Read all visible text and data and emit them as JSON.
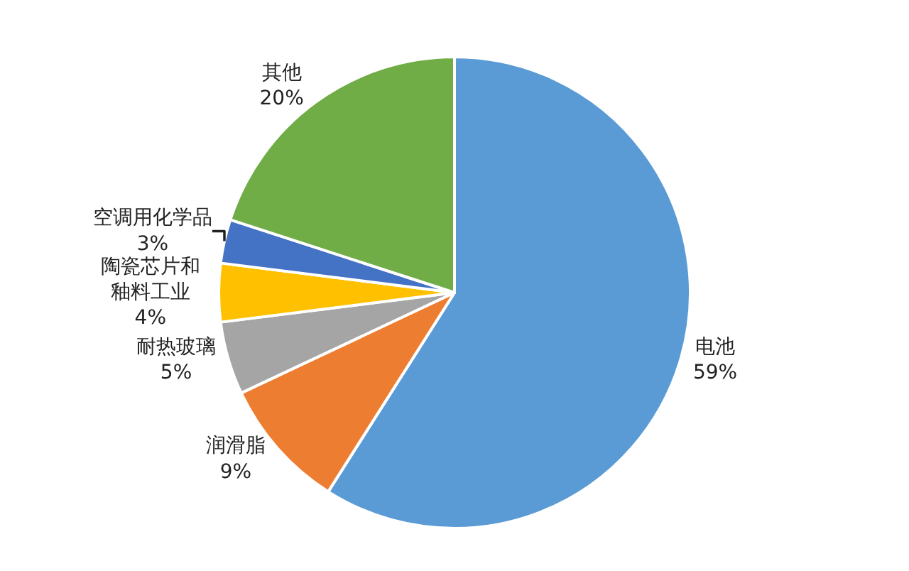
{
  "chart_data": {
    "type": "pie",
    "categories": [
      "电池",
      "润滑脂",
      "耐热玻璃",
      "陶瓷芯片和釉料工业",
      "空调用化学品",
      "其他"
    ],
    "values": [
      59,
      9,
      5,
      4,
      3,
      20
    ],
    "value_labels": [
      "59%",
      "9%",
      "5%",
      "4%",
      "3%",
      "20%"
    ],
    "colors": [
      "#5b9bd5",
      "#ed7d31",
      "#a5a5a5",
      "#ffc000",
      "#4472c4",
      "#70ad47"
    ],
    "legend": false
  }
}
